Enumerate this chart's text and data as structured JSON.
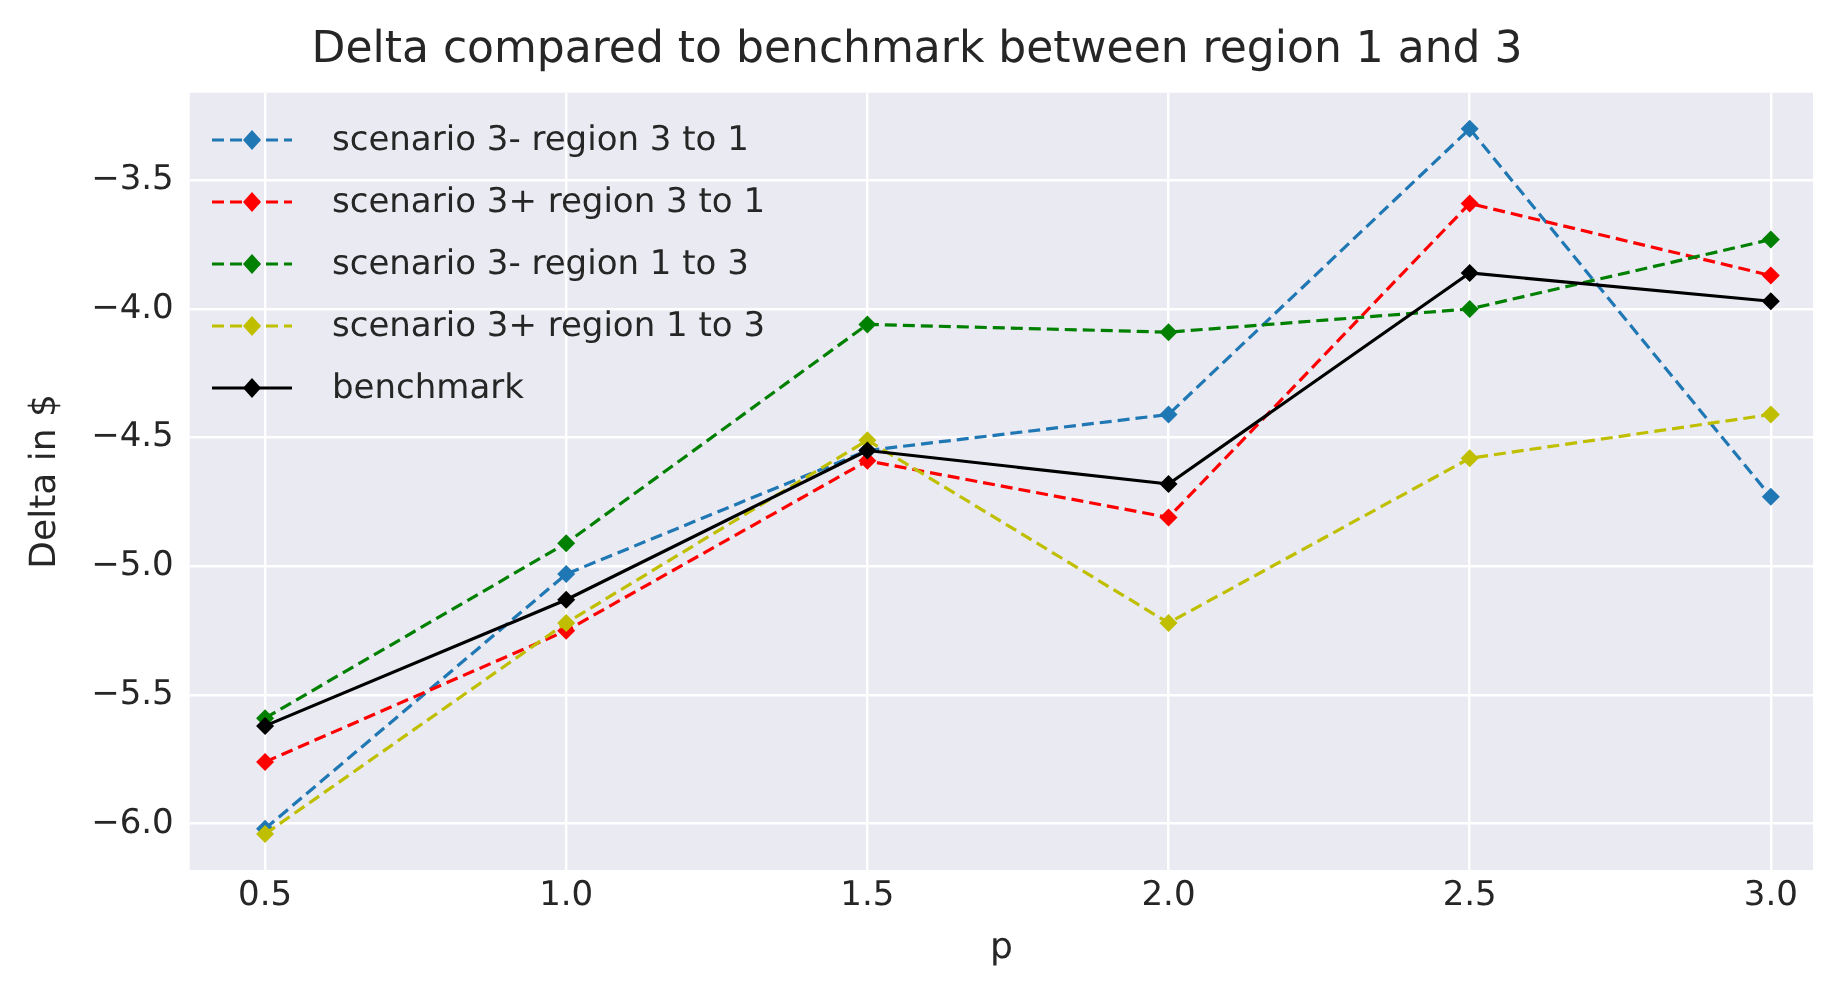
{
  "chart_data": {
    "type": "line",
    "title": "Delta compared to benchmark between region 1 and 3",
    "xlabel": "p",
    "ylabel": "Delta in $",
    "x": [
      0.5,
      1.0,
      1.5,
      2.0,
      2.5,
      3.0
    ],
    "series": [
      {
        "name": "scenario 3- region 3 to 1",
        "color": "#1f77b4",
        "line_style": "dashed",
        "values": [
          -6.02,
          -5.03,
          -4.55,
          -4.41,
          -3.3,
          -4.73
        ]
      },
      {
        "name": "scenario 3+ region 3 to 1",
        "color": "#ff0000",
        "line_style": "dashed",
        "values": [
          -5.76,
          -5.25,
          -4.59,
          -4.81,
          -3.59,
          -3.87
        ]
      },
      {
        "name": "scenario 3- region 1 to 3",
        "color": "#008000",
        "line_style": "dashed",
        "values": [
          -5.59,
          -4.91,
          -4.06,
          -4.09,
          -4.0,
          -3.73
        ]
      },
      {
        "name": "scenario 3+ region 1 to 3",
        "color": "#bfbf00",
        "line_style": "dashed",
        "values": [
          -6.04,
          -5.22,
          -4.51,
          -5.22,
          -4.58,
          -4.41
        ]
      },
      {
        "name": "benchmark",
        "color": "#000000",
        "line_style": "solid",
        "values": [
          -5.62,
          -5.13,
          -4.55,
          -4.68,
          -3.86,
          -3.97
        ]
      }
    ],
    "marker": "diamond",
    "grid": true,
    "legend": "top left",
    "xlim": [
      0.375,
      3.07
    ],
    "ylim": [
      -6.18,
      -3.16
    ],
    "xticks": [
      {
        "value": 0.5,
        "label": "0.5"
      },
      {
        "value": 1.0,
        "label": "1.0"
      },
      {
        "value": 1.5,
        "label": "1.5"
      },
      {
        "value": 2.0,
        "label": "2.0"
      },
      {
        "value": 2.5,
        "label": "2.5"
      },
      {
        "value": 3.0,
        "label": "3.0"
      }
    ],
    "yticks": [
      {
        "value": -6.0,
        "label": "−6.0"
      },
      {
        "value": -5.5,
        "label": "−5.5"
      },
      {
        "value": -5.0,
        "label": "−5.0"
      },
      {
        "value": -4.5,
        "label": "−4.5"
      },
      {
        "value": -4.0,
        "label": "−4.0"
      },
      {
        "value": -3.5,
        "label": "−3.5"
      }
    ]
  }
}
